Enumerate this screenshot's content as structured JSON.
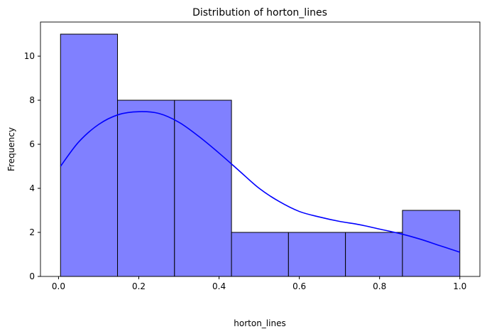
{
  "chart_data": {
    "type": "bar",
    "title": "Distribution of horton_lines",
    "xlabel": "horton_lines",
    "ylabel": "Frequency",
    "bins": [
      {
        "start": 0.005,
        "end": 0.147,
        "count": 11
      },
      {
        "start": 0.147,
        "end": 0.289,
        "count": 8
      },
      {
        "start": 0.289,
        "end": 0.431,
        "count": 8
      },
      {
        "start": 0.431,
        "end": 0.573,
        "count": 2
      },
      {
        "start": 0.573,
        "end": 0.715,
        "count": 2
      },
      {
        "start": 0.715,
        "end": 0.857,
        "count": 2
      },
      {
        "start": 0.857,
        "end": 1.0,
        "count": 3
      }
    ],
    "kde": {
      "x": [
        0.005,
        0.05,
        0.1,
        0.15,
        0.2,
        0.25,
        0.3,
        0.35,
        0.4,
        0.45,
        0.5,
        0.55,
        0.6,
        0.65,
        0.7,
        0.75,
        0.8,
        0.85,
        0.9,
        0.95,
        1.0
      ],
      "y": [
        5.0,
        6.1,
        6.9,
        7.35,
        7.48,
        7.4,
        7.0,
        6.35,
        5.6,
        4.8,
        4.0,
        3.4,
        2.95,
        2.7,
        2.5,
        2.35,
        2.15,
        1.95,
        1.7,
        1.4,
        1.1
      ]
    },
    "xlim": [
      -0.045,
      1.05
    ],
    "ylim": [
      0,
      11.55
    ],
    "xticks": [
      "0.0",
      "0.2",
      "0.4",
      "0.6",
      "0.8",
      "1.0"
    ],
    "yticks": [
      "0",
      "2",
      "4",
      "6",
      "8",
      "10"
    ],
    "grid": false,
    "bar_color": "#8080ff",
    "bar_edge_color": "#000000",
    "kde_color": "#0000ff"
  }
}
